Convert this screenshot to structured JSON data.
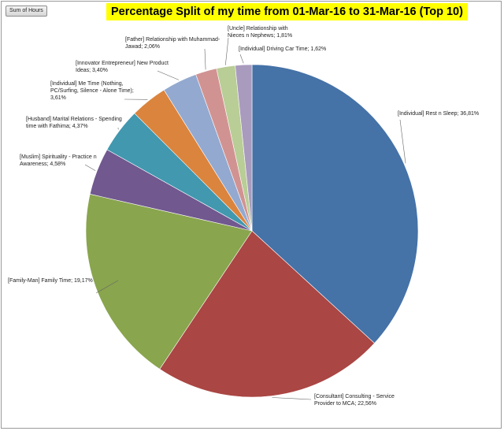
{
  "field_button": "Sum of Hours",
  "chart_data": {
    "type": "pie",
    "title": "Percentage Split of my time from 01-Mar-16 to 31-Mar-16 (Top 10)",
    "slices": [
      {
        "label_lines": [
          "[Individual] Rest n Sleep; 36,81%"
        ],
        "value": 36.81,
        "color": "#4572a7"
      },
      {
        "label_lines": [
          "[Consultant] Consulting  - Service",
          "Provider to MCA; 22,56%"
        ],
        "value": 22.56,
        "color": "#aa4643"
      },
      {
        "label_lines": [
          "[Family-Man] Family Time; 19,17%"
        ],
        "value": 19.17,
        "color": "#89a54e"
      },
      {
        "label_lines": [
          "[Muslim]  Spirituality  - Practice n",
          "Awareness; 4,58%"
        ],
        "value": 4.58,
        "color": "#71588f"
      },
      {
        "label_lines": [
          "[Husband] Marital Relations - Spending",
          "time  with Fathima; 4,37%"
        ],
        "value": 4.37,
        "color": "#4198af"
      },
      {
        "label_lines": [
          "[Individual] Me Time (Nothing,",
          "PC/Surfing, Silence  - Alone Time);",
          "3,61%"
        ],
        "value": 3.61,
        "color": "#db843d"
      },
      {
        "label_lines": [
          "[Innovator Entrepreneur] New Product",
          "Ideas; 3,40%"
        ],
        "value": 3.4,
        "color": "#93a9cf"
      },
      {
        "label_lines": [
          "[Father] Relationship  with Muhammad-",
          "Jawad; 2,06%"
        ],
        "value": 2.06,
        "color": "#d19392"
      },
      {
        "label_lines": [
          "[Uncle] Relationship  with",
          "Nieces n Nephews; 1,81%"
        ],
        "value": 1.81,
        "color": "#b9cd96"
      },
      {
        "label_lines": [
          "[Individual] Driving Car Time; 1,62%"
        ],
        "value": 1.62,
        "color": "#a99bbd"
      }
    ]
  }
}
